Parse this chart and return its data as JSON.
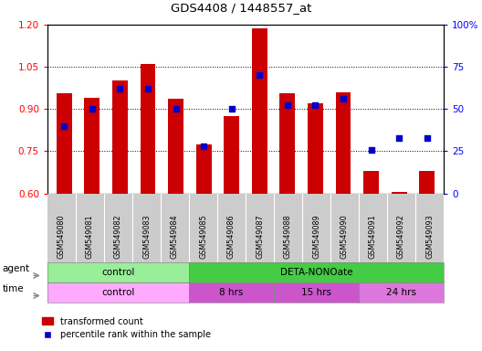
{
  "title": "GDS4408 / 1448557_at",
  "samples": [
    "GSM549080",
    "GSM549081",
    "GSM549082",
    "GSM549083",
    "GSM549084",
    "GSM549085",
    "GSM549086",
    "GSM549087",
    "GSM549088",
    "GSM549089",
    "GSM549090",
    "GSM549091",
    "GSM549092",
    "GSM549093"
  ],
  "transformed_counts": [
    0.955,
    0.94,
    1.0,
    1.06,
    0.935,
    0.775,
    0.875,
    1.185,
    0.955,
    0.92,
    0.96,
    0.68,
    0.605,
    0.68
  ],
  "percentile_ranks": [
    40,
    50,
    62,
    62,
    50,
    28,
    50,
    70,
    52,
    52,
    56,
    26,
    33,
    33
  ],
  "ylim_left": [
    0.6,
    1.2
  ],
  "ylim_right": [
    0,
    100
  ],
  "bar_color": "#cc0000",
  "dot_color": "#0000cc",
  "yticks_left": [
    0.6,
    0.75,
    0.9,
    1.05,
    1.2
  ],
  "yticks_right": [
    0,
    25,
    50,
    75,
    100
  ],
  "ytick_labels_right": [
    "0",
    "25",
    "50",
    "75",
    "100%"
  ],
  "agent_groups": [
    {
      "label": "control",
      "start": 0,
      "end": 5,
      "color": "#99ee99"
    },
    {
      "label": "DETA-NONOate",
      "start": 5,
      "end": 14,
      "color": "#44cc44"
    }
  ],
  "time_groups": [
    {
      "label": "control",
      "start": 0,
      "end": 5,
      "color": "#ffaaff"
    },
    {
      "label": "8 hrs",
      "start": 5,
      "end": 8,
      "color": "#cc55cc"
    },
    {
      "label": "15 hrs",
      "start": 8,
      "end": 11,
      "color": "#cc55cc"
    },
    {
      "label": "24 hrs",
      "start": 11,
      "end": 14,
      "color": "#dd77dd"
    }
  ],
  "legend_bar_label": "transformed count",
  "legend_dot_label": "percentile rank within the sample"
}
